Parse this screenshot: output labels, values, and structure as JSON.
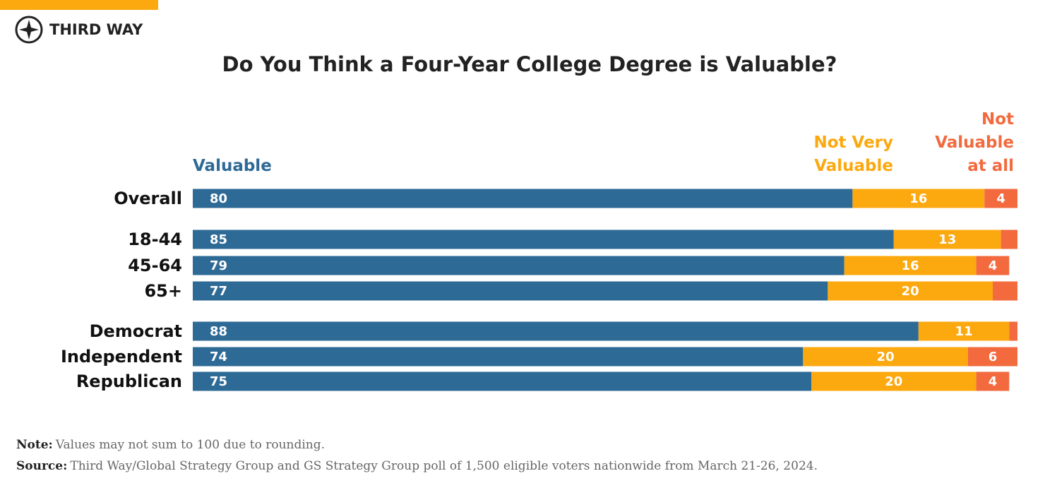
{
  "logo": "THIRD WAY",
  "chart_data": {
    "type": "bar",
    "orientation": "horizontal",
    "stacked": true,
    "title": "Do You Think a Four-Year College Degree is Valuable?",
    "categories": [
      "Overall",
      "18-44",
      "45-64",
      "65+",
      "Democrat",
      "Independent",
      "Republican"
    ],
    "series": [
      {
        "name": "Valuable",
        "color": "#2e6a96",
        "values": [
          80,
          85,
          79,
          77,
          88,
          74,
          75
        ]
      },
      {
        "name": "Not Very Valuable",
        "color": "#fca80f",
        "values": [
          16,
          13,
          16,
          20,
          11,
          20,
          20
        ]
      },
      {
        "name": "Not Valuable at all",
        "color": "#f26a3e",
        "values": [
          4,
          2,
          4,
          3,
          1,
          6,
          4
        ]
      }
    ],
    "xlim": [
      0,
      100
    ]
  },
  "footnotes": {
    "note_label": "Note:",
    "note": "Values may not sum to 100 due to rounding.",
    "source_label": "Source:",
    "source": "Third Way/Global Strategy Group and GS Strategy Group poll of 1,500 eligible voters nationwide from March 21-26, 2024."
  }
}
